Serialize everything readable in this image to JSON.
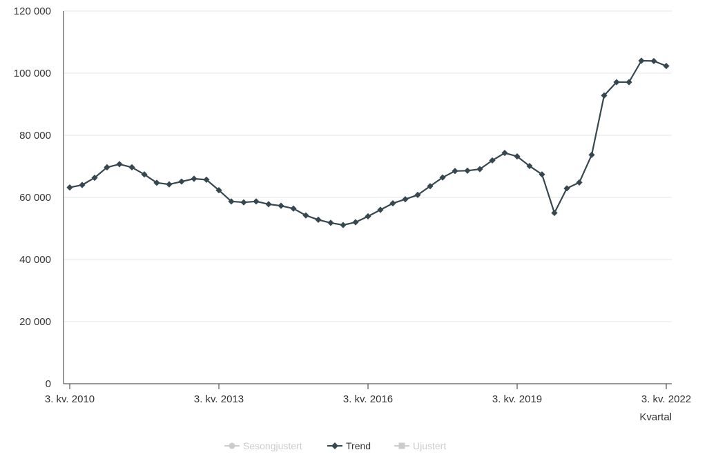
{
  "chart_data": {
    "type": "line",
    "title": "",
    "xlabel": "Kvartal",
    "ylabel": "",
    "ylim": [
      0,
      120000
    ],
    "y_ticks": [
      "0",
      "20 000",
      "40 000",
      "60 000",
      "80 000",
      "100 000",
      "120 000"
    ],
    "y_tick_values": [
      0,
      20000,
      40000,
      60000,
      80000,
      100000,
      120000
    ],
    "x_ticks": [
      "3. kv. 2010",
      "3. kv. 2013",
      "3. kv. 2016",
      "3. kv. 2019",
      "3. kv. 2022"
    ],
    "grid": true,
    "legend_position": "bottom",
    "series": [
      {
        "name": "Trend",
        "color": "#37474f",
        "marker": "diamond",
        "visible": true,
        "values": [
          63200,
          64000,
          66300,
          69700,
          70700,
          69700,
          67400,
          64700,
          64200,
          65100,
          66000,
          65700,
          62300,
          58700,
          58400,
          58700,
          57800,
          57300,
          56400,
          54200,
          52800,
          51800,
          51100,
          52000,
          53900,
          56000,
          58100,
          59400,
          60800,
          63600,
          66400,
          68500,
          68600,
          69100,
          71900,
          74300,
          73200,
          70100,
          67400,
          55000,
          62900,
          64800,
          73700,
          92800,
          97100,
          97100,
          104000,
          103900,
          102300
        ]
      }
    ],
    "legend": [
      {
        "label": "Sesongjustert",
        "active": false,
        "marker": "circle"
      },
      {
        "label": "Trend",
        "active": true,
        "marker": "diamond"
      },
      {
        "label": "Ujustert",
        "active": false,
        "marker": "square"
      }
    ],
    "colors": {
      "active": "#37474f",
      "inactive": "#cccccc",
      "grid": "#e6e6e6",
      "axis": "#333333"
    }
  }
}
